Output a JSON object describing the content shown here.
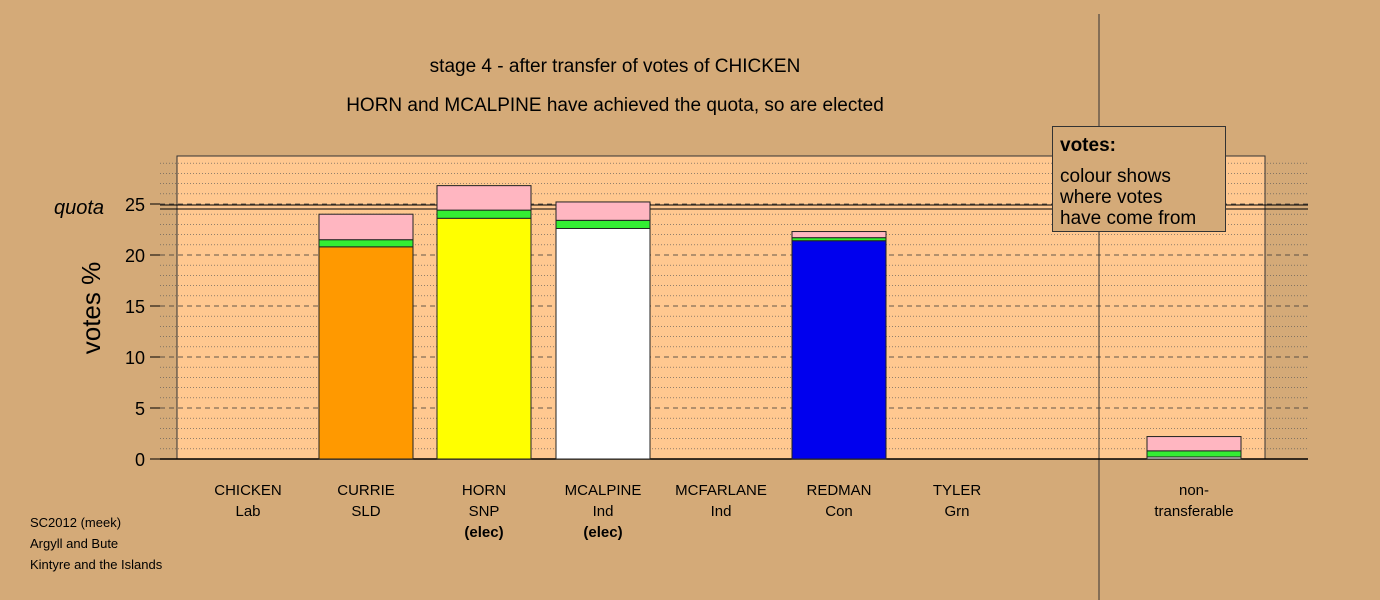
{
  "title_line1": "stage 4 - after transfer of votes of CHICKEN",
  "title_line2": "HORN and MCALPINE have achieved the quota, so are elected",
  "legend": {
    "title": "votes:",
    "lines": [
      "colour shows",
      "where votes",
      "have come from"
    ]
  },
  "footer": [
    "SC2012 (meek)",
    "Argyll and Bute",
    "Kintyre and the Islands"
  ],
  "colors": {
    "background": "#d4aa78",
    "plot_area": "#ffc890",
    "first_pref_lab": "#ffb6c1",
    "transfer_green": "#33ee33"
  },
  "chart_data": {
    "type": "bar",
    "stacked": true,
    "ylabel": "votes %",
    "ylim": [
      0,
      30
    ],
    "yticks": [
      0,
      5,
      10,
      15,
      20,
      25
    ],
    "quota": 24.7,
    "quota_label": "quota",
    "grid": "dashed horizontal",
    "legend_position": "top-right",
    "categories": [
      {
        "name": "CHICKEN",
        "party": "Lab",
        "status": ""
      },
      {
        "name": "CURRIE",
        "party": "SLD",
        "status": ""
      },
      {
        "name": "HORN",
        "party": "SNP",
        "status": "(elec)"
      },
      {
        "name": "MCALPINE",
        "party": "Ind",
        "status": "(elec)"
      },
      {
        "name": "MCFARLANE",
        "party": "Ind",
        "status": ""
      },
      {
        "name": "REDMAN",
        "party": "Con",
        "status": ""
      },
      {
        "name": "TYLER",
        "party": "Grn",
        "status": ""
      },
      {
        "name": "non-",
        "party": "transferable",
        "status": ""
      }
    ],
    "bars": [
      [],
      [
        {
          "value": 20.8,
          "color": "#ff9900"
        },
        {
          "value": 0.7,
          "color": "#33ee33"
        },
        {
          "value": 2.5,
          "color": "#ffb6c1"
        }
      ],
      [
        {
          "value": 23.6,
          "color": "#ffff00"
        },
        {
          "value": 0.8,
          "color": "#33ee33"
        },
        {
          "value": 2.4,
          "color": "#ffb6c1"
        }
      ],
      [
        {
          "value": 22.6,
          "color": "#ffffff"
        },
        {
          "value": 0.8,
          "color": "#33ee33"
        },
        {
          "value": 1.8,
          "color": "#ffb6c1"
        }
      ],
      [],
      [
        {
          "value": 21.4,
          "color": "#0000ee"
        },
        {
          "value": 0.3,
          "color": "#33ee33"
        },
        {
          "value": 0.6,
          "color": "#ffb6c1"
        }
      ],
      [],
      [
        {
          "value": 0.2,
          "color": "#ffffff"
        },
        {
          "value": 0.6,
          "color": "#33ee33"
        },
        {
          "value": 1.4,
          "color": "#ffb6c1"
        }
      ]
    ]
  }
}
